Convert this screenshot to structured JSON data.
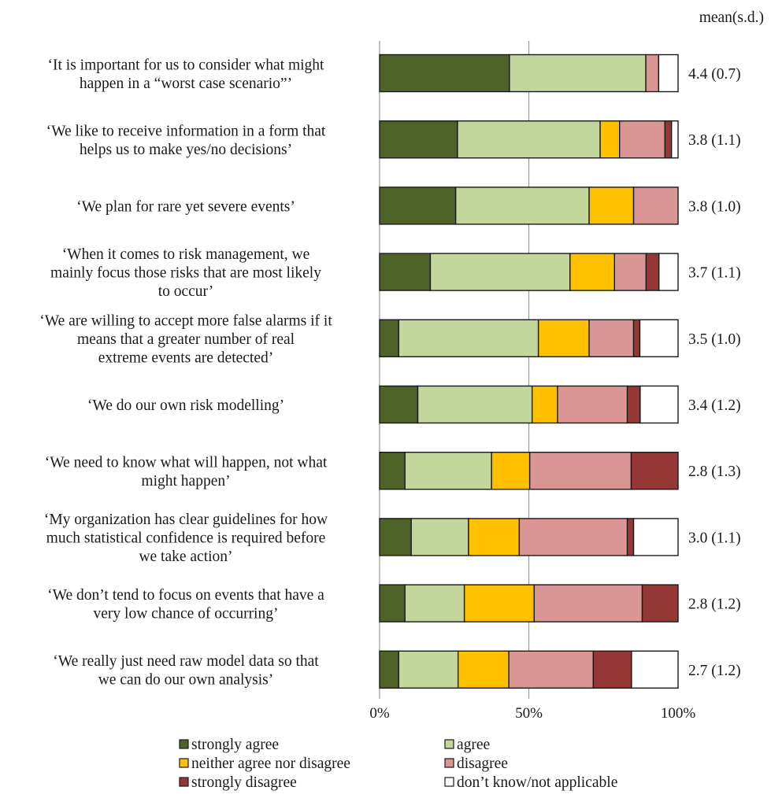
{
  "chart_data": {
    "type": "bar",
    "stacked": true,
    "orientation": "horizontal",
    "mean_header": "mean(s.d.)",
    "x_ticks": [
      "0%",
      "50%",
      "100%"
    ],
    "xlim": [
      0,
      100
    ],
    "gridlines_at": [
      50
    ],
    "legend_position": "bottom",
    "categories": [
      [
        "‘It is important for us to consider what might",
        "happen in a “worst case scenario”’"
      ],
      [
        "‘We like to receive information in a form that",
        "helps us to make yes/no decisions’"
      ],
      [
        "‘We plan for rare yet severe events’"
      ],
      [
        "‘When it comes to risk management, we",
        "mainly focus those risks that are most likely",
        "to occur’"
      ],
      [
        "‘We are willing to accept more false alarms if it",
        "means that a greater number of real",
        "extreme events are detected’"
      ],
      [
        "‘We do our own risk modelling’"
      ],
      [
        "‘We need to know what will happen, not what",
        "might happen’"
      ],
      [
        "‘My organization has clear guidelines for how",
        "much statistical confidence is required before",
        "we take action’"
      ],
      [
        "‘We don’t tend to focus on events that have a",
        "very low chance of occurring’"
      ],
      [
        "‘We really just need raw model data so that",
        "we can do our own analysis’"
      ]
    ],
    "means": [
      "4.4 (0.7)",
      "3.8 (1.1)",
      "3.8 (1.0)",
      "3.7 (1.1)",
      "3.5 (1.0)",
      "3.4 (1.2)",
      "2.8 (1.3)",
      "3.0 (1.1)",
      "2.8 (1.2)",
      "2.7 (1.2)"
    ],
    "series": [
      {
        "name": "strongly agree",
        "color": "#4f6228",
        "values": [
          43.5,
          26.1,
          25.5,
          17.0,
          6.4,
          12.8,
          8.5,
          10.6,
          8.5,
          6.4
        ]
      },
      {
        "name": "agree",
        "color": "#c3d69b",
        "values": [
          45.7,
          47.8,
          44.7,
          46.8,
          46.8,
          38.3,
          29.0,
          19.2,
          19.9,
          19.9
        ]
      },
      {
        "name": "neither agree nor disagree",
        "color": "#ffc000",
        "values": [
          0.0,
          6.5,
          14.9,
          14.9,
          17.0,
          8.5,
          12.8,
          17.0,
          23.4,
          17.0
        ]
      },
      {
        "name": "disagree",
        "color": "#d99694",
        "values": [
          4.3,
          15.2,
          14.9,
          10.6,
          14.9,
          23.4,
          34.0,
          36.2,
          36.2,
          28.3
        ]
      },
      {
        "name": "strongly disagree",
        "color": "#953735",
        "values": [
          0.0,
          2.2,
          0.0,
          4.3,
          2.1,
          4.3,
          15.7,
          2.1,
          12.0,
          12.8
        ]
      },
      {
        "name": "don’t know/not applicable",
        "color": "#ffffff",
        "values": [
          6.5,
          2.2,
          0.0,
          6.4,
          12.8,
          12.7,
          0.0,
          14.9,
          0.0,
          15.6
        ]
      }
    ]
  }
}
